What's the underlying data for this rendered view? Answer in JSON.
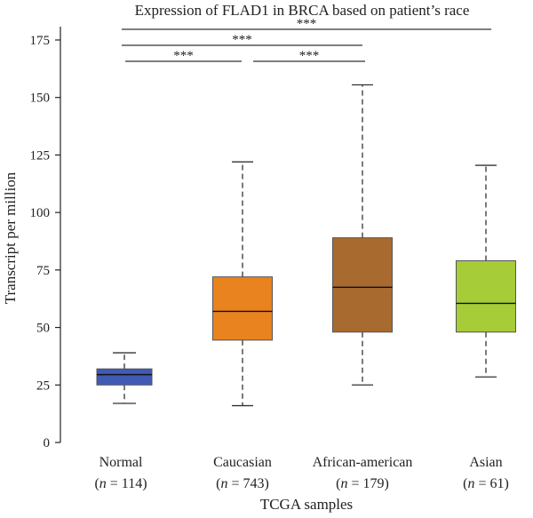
{
  "chart_data": {
    "type": "box",
    "title": "Expression of FLAD1 in BRCA based on patient’s race",
    "xlabel": "TCGA samples",
    "ylabel": "Transcript per million",
    "ylim": [
      0,
      175
    ],
    "yticks": [
      0,
      25,
      50,
      75,
      100,
      125,
      150,
      175
    ],
    "grid": false,
    "categories": [
      {
        "label": "Normal",
        "n_label": "(n = 114)",
        "n_prefix": "(",
        "n_var": "n",
        "n_suffix": " = 114)",
        "color": "#3f5bb5",
        "min": 17,
        "q1": 25,
        "median": 29.5,
        "q3": 32,
        "max": 39
      },
      {
        "label": "Caucasian",
        "n_label": "(n = 743)",
        "n_prefix": "(",
        "n_var": "n",
        "n_suffix": " = 743)",
        "color": "#e8831f",
        "min": 16,
        "q1": 44.5,
        "median": 57,
        "q3": 72,
        "max": 122
      },
      {
        "label": "African-american",
        "n_label": "(n = 179)",
        "n_prefix": "(",
        "n_var": "n",
        "n_suffix": " = 179)",
        "color": "#a86a2f",
        "min": 25,
        "q1": 48,
        "median": 67.5,
        "q3": 89,
        "max": 155.5
      },
      {
        "label": "Asian",
        "n_label": "(n = 61)",
        "n_prefix": "(",
        "n_var": "n",
        "n_suffix": " = 61)",
        "color": "#a6cc38",
        "min": 28.5,
        "q1": 48,
        "median": 60.5,
        "q3": 79,
        "max": 120.5
      }
    ],
    "significance": [
      {
        "from": 0,
        "to": 3,
        "level": 172,
        "label": "***"
      },
      {
        "from": 0,
        "to": 2,
        "level": 166,
        "label": "***"
      },
      {
        "from": 0,
        "to": 1,
        "level": 158,
        "label": "***"
      },
      {
        "from": 1,
        "to": 2,
        "level": 158,
        "label": "***"
      }
    ]
  }
}
